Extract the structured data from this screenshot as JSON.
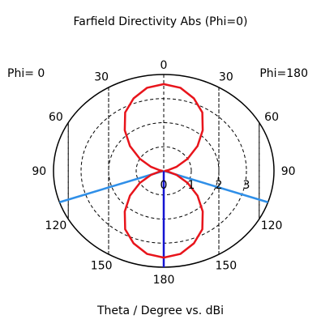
{
  "chart_data": {
    "type": "polar",
    "title": "Farfield Directivity Abs (Phi=0)",
    "xlabel": "Theta / Degree vs. dBi",
    "left_label": "Phi=  0",
    "right_label": "Phi=180",
    "radial_range": [
      0,
      4
    ],
    "radial_ticks": [
      "0",
      "1",
      "2",
      "3"
    ],
    "angle_labels_left": [
      "30",
      "60",
      "90",
      "120",
      "150"
    ],
    "angle_labels_right": [
      "30",
      "60",
      "90",
      "120",
      "150"
    ],
    "angle_label_top": "0",
    "angle_label_bottom": "180",
    "grid": true,
    "series": [
      {
        "color": "#e8141b",
        "theta_deg": [
          0,
          10,
          20,
          30,
          40,
          50,
          60,
          70,
          80,
          90,
          100,
          110,
          120,
          130,
          140,
          150,
          160,
          170,
          180
        ],
        "r_dbi": [
          3.6,
          3.5,
          3.2,
          2.8,
          2.2,
          1.6,
          1.0,
          0.5,
          0.15,
          0.05,
          0.15,
          0.5,
          1.0,
          1.6,
          2.2,
          2.8,
          3.2,
          3.5,
          3.6
        ]
      }
    ],
    "reference_lines": [
      {
        "color": "#2f8fe8",
        "phi_side": "0",
        "theta_deg": 109
      },
      {
        "color": "#2f8fe8",
        "phi_side": "180",
        "theta_deg": 109
      },
      {
        "color": "#1414d2",
        "phi_side": "0",
        "theta_deg": 180
      }
    ]
  }
}
